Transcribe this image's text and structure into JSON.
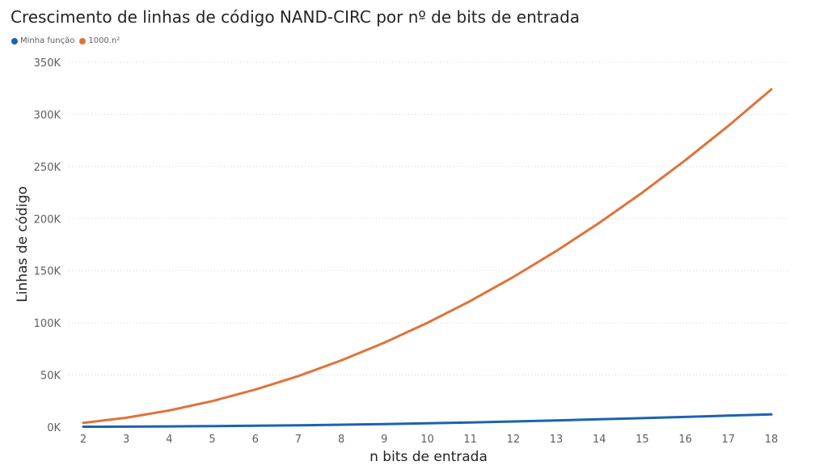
{
  "chart_data": {
    "type": "line",
    "title": "Crescimento de linhas de código NAND-CIRC por nº de bits de entrada",
    "xlabel": "n bits de entrada",
    "ylabel": "Linhas de código",
    "x": [
      2,
      3,
      4,
      5,
      6,
      7,
      8,
      9,
      10,
      11,
      12,
      13,
      14,
      15,
      16,
      17,
      18
    ],
    "xlim": [
      2,
      18
    ],
    "ylim": [
      0,
      350000
    ],
    "y_ticks": [
      0,
      50000,
      100000,
      150000,
      200000,
      250000,
      300000,
      350000
    ],
    "y_tick_labels": [
      "0K",
      "50K",
      "100K",
      "150K",
      "200K",
      "250K",
      "300K",
      "350K"
    ],
    "grid": true,
    "legend_position": "top-left",
    "series": [
      {
        "name": "Minha função",
        "color": "#1a63b0",
        "values": [
          400,
          500,
          700,
          1000,
          1300,
          1700,
          2300,
          2900,
          3700,
          4500,
          5400,
          6400,
          7500,
          8600,
          9800,
          11000,
          12200
        ]
      },
      {
        "name": "1000.n²",
        "color": "#e0723a",
        "values": [
          4000,
          9000,
          16000,
          25000,
          36000,
          49000,
          64000,
          81000,
          100000,
          121000,
          144000,
          169000,
          196000,
          225000,
          256000,
          289000,
          324000
        ]
      }
    ]
  }
}
